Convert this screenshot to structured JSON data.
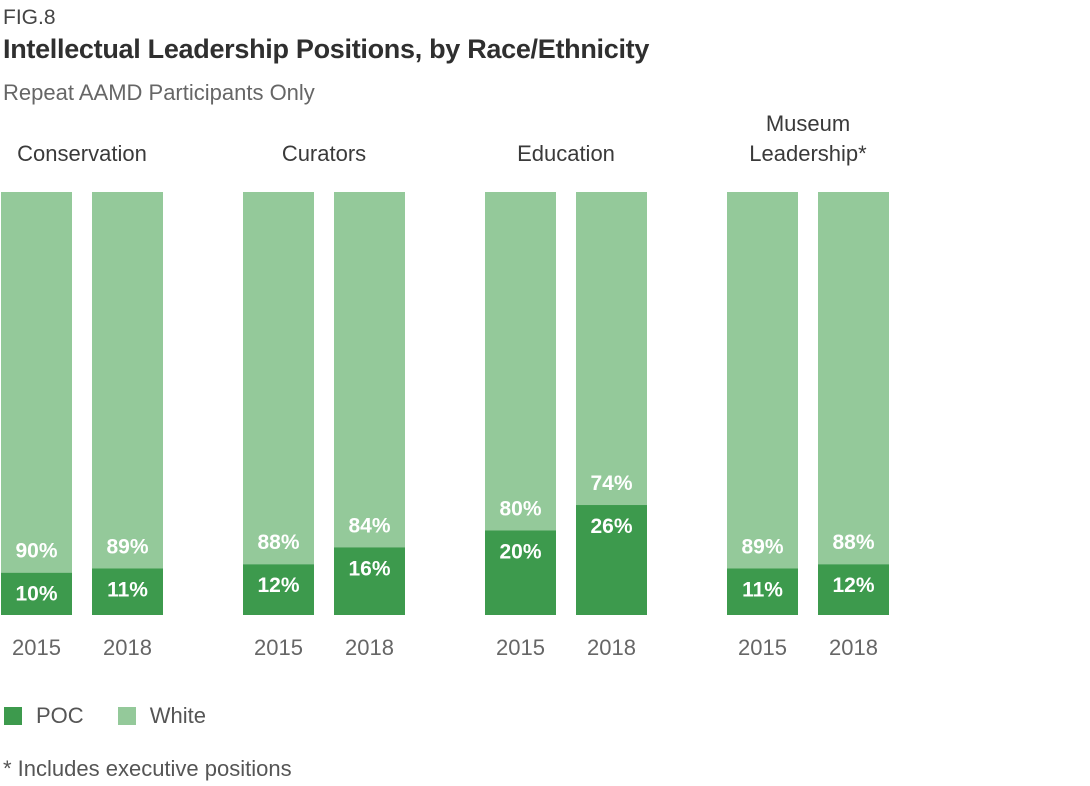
{
  "header": {
    "fig_label": "FIG.8",
    "title": "Intellectual Leadership Positions, by Race/Ethnicity",
    "subtitle": "Repeat AAMD Participants Only"
  },
  "legend": {
    "items": [
      {
        "label": "POC",
        "color": "#3d9a4d"
      },
      {
        "label": "White",
        "color": "#94c99a"
      }
    ]
  },
  "footnote": "* Includes executive positions",
  "chart_data": {
    "type": "bar",
    "stacked": true,
    "title": "Intellectual Leadership Positions, by Race/Ethnicity",
    "subtitle": "Repeat AAMD Participants Only",
    "ylim": [
      0,
      100
    ],
    "groups": [
      {
        "name_lines": [
          "Conservation"
        ],
        "bars": [
          {
            "year": "2015",
            "POC": 10,
            "White": 90
          },
          {
            "year": "2018",
            "POC": 11,
            "White": 89
          }
        ]
      },
      {
        "name_lines": [
          "Curators"
        ],
        "bars": [
          {
            "year": "2015",
            "POC": 12,
            "White": 88
          },
          {
            "year": "2018",
            "POC": 16,
            "White": 84
          }
        ]
      },
      {
        "name_lines": [
          "Education"
        ],
        "bars": [
          {
            "year": "2015",
            "POC": 20,
            "White": 80
          },
          {
            "year": "2018",
            "POC": 26,
            "White": 74
          }
        ]
      },
      {
        "name_lines": [
          "Museum",
          "Leadership*"
        ],
        "bars": [
          {
            "year": "2015",
            "POC": 11,
            "White": 89
          },
          {
            "year": "2018",
            "POC": 12,
            "White": 88
          }
        ]
      }
    ],
    "series": [
      {
        "name": "POC",
        "color": "#3d9a4d"
      },
      {
        "name": "White",
        "color": "#94c99a"
      }
    ],
    "value_suffix": "%"
  }
}
